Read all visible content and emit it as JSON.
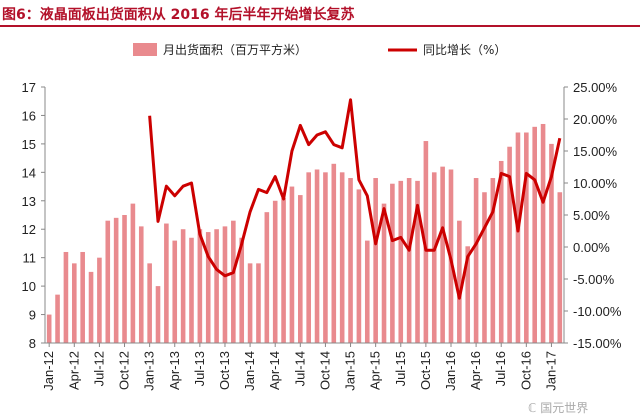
{
  "title": "图6：液晶面板出货面积从 2016 年后半年开始增长复苏",
  "watermark": "ℂ 国元世界",
  "colors": {
    "title": "#b3112a",
    "bars": "#e98a8e",
    "line": "#cc0000",
    "axis": "#888888"
  },
  "chart_data": {
    "type": "bar+line",
    "categories": [
      "Jan-12",
      "Feb-12",
      "Mar-12",
      "Apr-12",
      "May-12",
      "Jun-12",
      "Jul-12",
      "Aug-12",
      "Sep-12",
      "Oct-12",
      "Nov-12",
      "Dec-12",
      "Jan-13",
      "Feb-13",
      "Mar-13",
      "Apr-13",
      "May-13",
      "Jun-13",
      "Jul-13",
      "Aug-13",
      "Sep-13",
      "Oct-13",
      "Nov-13",
      "Dec-13",
      "Jan-14",
      "Feb-14",
      "Mar-14",
      "Apr-14",
      "May-14",
      "Jun-14",
      "Jul-14",
      "Aug-14",
      "Sep-14",
      "Oct-14",
      "Nov-14",
      "Dec-14",
      "Jan-15",
      "Feb-15",
      "Mar-15",
      "Apr-15",
      "May-15",
      "Jun-15",
      "Jul-15",
      "Aug-15",
      "Sep-15",
      "Oct-15",
      "Nov-15",
      "Dec-15",
      "Jan-16",
      "Feb-16",
      "Mar-16",
      "Apr-16",
      "May-16",
      "Jun-16",
      "Jul-16",
      "Aug-16",
      "Sep-16",
      "Oct-16",
      "Nov-16",
      "Dec-16",
      "Jan-17",
      "Feb-17"
    ],
    "xtick_labels": [
      "Jan-12",
      "Apr-12",
      "Jul-12",
      "Oct-12",
      "Jan-13",
      "Apr-13",
      "Jul-13",
      "Oct-13",
      "Jan-14",
      "Apr-14",
      "Jul-14",
      "Oct-14",
      "Jan-15",
      "Apr-15",
      "Jul-15",
      "Oct-15",
      "Jan-16",
      "Apr-16",
      "Jul-16",
      "Oct-16",
      "Jan-17"
    ],
    "series": [
      {
        "name": "月出货面积（百万平方米）",
        "type": "bar",
        "axis": "left",
        "values": [
          9.0,
          9.7,
          11.2,
          10.8,
          11.2,
          10.5,
          11.0,
          12.3,
          12.4,
          12.5,
          12.9,
          12.1,
          10.8,
          10.0,
          12.2,
          11.6,
          12.0,
          11.7,
          12.0,
          11.9,
          12.0,
          12.1,
          12.3,
          11.7,
          10.8,
          10.8,
          12.6,
          13.0,
          13.1,
          13.5,
          13.2,
          14.0,
          14.1,
          14.0,
          14.3,
          14.0,
          13.8,
          13.4,
          11.6,
          13.8,
          12.9,
          13.6,
          13.7,
          13.8,
          13.7,
          15.1,
          14.0,
          14.2,
          14.1,
          12.3,
          11.4,
          13.8,
          13.3,
          13.8,
          14.4,
          14.9,
          15.4,
          15.4,
          15.6,
          15.7,
          15.0,
          13.3
        ]
      },
      {
        "name": "同比增长（%）",
        "type": "line",
        "axis": "right",
        "values": [
          null,
          null,
          null,
          null,
          null,
          null,
          null,
          null,
          null,
          null,
          null,
          null,
          20.5,
          4.0,
          9.5,
          8.0,
          9.5,
          10.0,
          2.0,
          -1.5,
          -3.5,
          -4.5,
          -4.0,
          0.5,
          5.5,
          9.0,
          8.5,
          11.0,
          7.5,
          15.0,
          19.0,
          16.0,
          17.5,
          18.0,
          16.0,
          15.5,
          23.0,
          10.5,
          8.0,
          0.5,
          6.0,
          1.0,
          1.5,
          -0.5,
          6.5,
          -0.5,
          -0.5,
          3.0,
          -2.0,
          -8.0,
          -1.5,
          0.5,
          3.0,
          5.5,
          11.5,
          11.0,
          2.5,
          11.5,
          10.5,
          7.0,
          11.0,
          17.0
        ]
      }
    ],
    "y_left": {
      "ylim": [
        8,
        17
      ],
      "ticks": [
        8,
        9,
        10,
        11,
        12,
        13,
        14,
        15,
        16,
        17
      ]
    },
    "y_right": {
      "ylim": [
        -15,
        25
      ],
      "ticks": [
        -15,
        -10,
        -5,
        0,
        5,
        10,
        15,
        20,
        25
      ],
      "tick_labels": [
        "-15.00%",
        "-10.00%",
        "-5.00%",
        "0.00%",
        "5.00%",
        "10.00%",
        "15.00%",
        "20.00%",
        "25.00%"
      ]
    },
    "legend": {
      "position": "top",
      "entries": [
        "月出货面积（百万平方米）",
        "同比增长（%）"
      ]
    },
    "grid": false
  }
}
